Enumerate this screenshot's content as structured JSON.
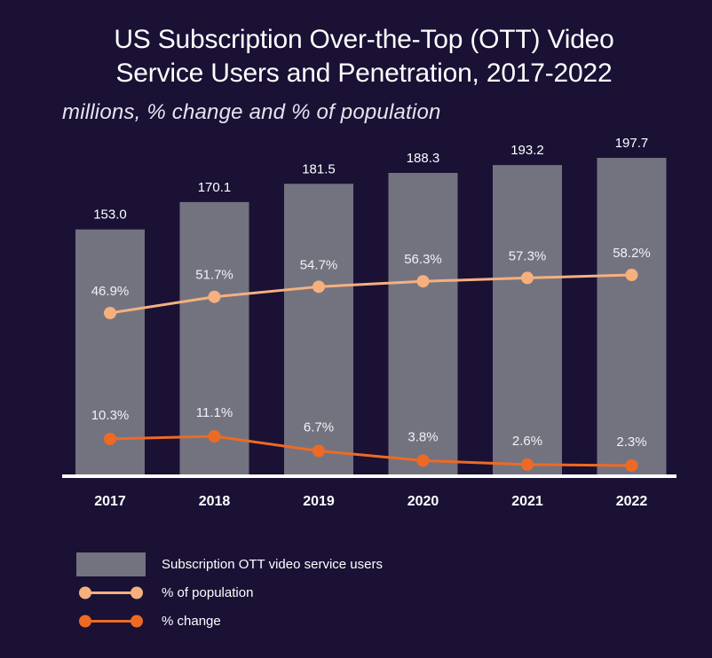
{
  "chart_data": {
    "type": "bar",
    "title": "US Subscription Over-the-Top (OTT) Video Service Users and Penetration, 2017-2022",
    "title_lines": [
      "US Subscription Over-the-Top (OTT) Video",
      "Service Users and Penetration, 2017-2022"
    ],
    "subtitle": "millions, % change and % of population",
    "xlabel": "",
    "ylabel": "",
    "grid": false,
    "legend_position": "bottom-left",
    "categories": [
      "2017",
      "2018",
      "2019",
      "2020",
      "2021",
      "2022"
    ],
    "series": [
      {
        "name": "Subscription OTT video service users",
        "type": "bar",
        "unit": "millions",
        "values": [
          153.0,
          170.1,
          181.5,
          188.3,
          193.2,
          197.7
        ],
        "labels": [
          "153.0",
          "170.1",
          "181.5",
          "188.3",
          "193.2",
          "197.7"
        ],
        "color": "#737380"
      },
      {
        "name": "% of population",
        "type": "line",
        "unit": "%",
        "values": [
          46.9,
          51.7,
          54.7,
          56.3,
          57.3,
          58.2
        ],
        "labels": [
          "46.9%",
          "51.7%",
          "54.7%",
          "56.3%",
          "57.3%",
          "58.2%"
        ],
        "color": "#f6b07e"
      },
      {
        "name": "% change",
        "type": "line",
        "unit": "%",
        "values": [
          10.3,
          11.1,
          6.7,
          3.8,
          2.6,
          2.3
        ],
        "labels": [
          "10.3%",
          "11.1%",
          "6.7%",
          "3.8%",
          "2.6%",
          "2.3%"
        ],
        "color": "#ee6a24"
      }
    ]
  },
  "legend": {
    "items": [
      {
        "label": "Subscription OTT video service users"
      },
      {
        "label": "% of population"
      },
      {
        "label": "% change"
      }
    ]
  },
  "colors": {
    "background": "#1a1135",
    "bar": "#737380",
    "population_line": "#f6b07e",
    "change_line": "#ee6a24",
    "axis": "#ffffff"
  }
}
